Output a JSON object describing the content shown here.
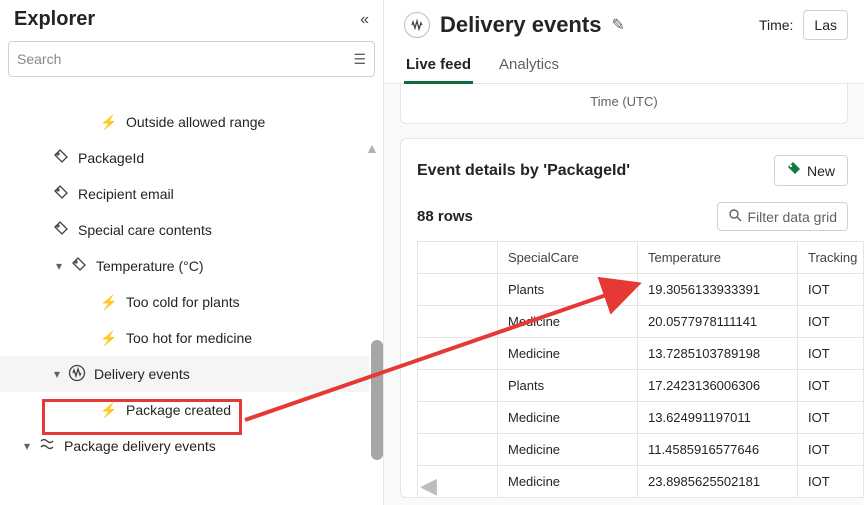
{
  "sidebar": {
    "title": "Explorer",
    "search_placeholder": "Search",
    "items": [
      {
        "label": "Outside allowed range",
        "icon": "bolt",
        "indent": 3
      },
      {
        "label": "PackageId",
        "icon": "tag",
        "indent": 1
      },
      {
        "label": "Recipient email",
        "icon": "tag",
        "indent": 1
      },
      {
        "label": "Special care contents",
        "icon": "tag",
        "indent": 1
      },
      {
        "label": "Temperature (°C)",
        "icon": "tag",
        "indent": 1,
        "expanded": true
      },
      {
        "label": "Too cold for plants",
        "icon": "bolt",
        "indent": 3
      },
      {
        "label": "Too hot for medicine",
        "icon": "bolt",
        "indent": 3
      },
      {
        "label": "Delivery events",
        "icon": "wave",
        "indent": 1,
        "expanded": true,
        "selected": true
      },
      {
        "label": "Package created",
        "icon": "bolt",
        "indent": 3
      },
      {
        "label": "Package delivery events",
        "icon": "flow",
        "indent": 0,
        "expanded": true
      }
    ]
  },
  "header": {
    "title": "Delivery events",
    "time_label": "Time:",
    "time_value": "Las"
  },
  "tabs": {
    "live": "Live feed",
    "analytics": "Analytics"
  },
  "time_col": "Time (UTC)",
  "details": {
    "title": "Event details by 'PackageId'",
    "new_button": "New",
    "rows_text": "88 rows",
    "filter_placeholder": "Filter data grid"
  },
  "table": {
    "columns": [
      "",
      "SpecialCare",
      "Temperature",
      "Tracking"
    ],
    "rows": [
      [
        "",
        "Plants",
        "19.3056133933391",
        "IOT"
      ],
      [
        "",
        "Medicine",
        "20.0577978111141",
        "IOT"
      ],
      [
        "",
        "Medicine",
        "13.7285103789198",
        "IOT"
      ],
      [
        "",
        "Plants",
        "17.2423136006306",
        "IOT"
      ],
      [
        "",
        "Medicine",
        "13.624991197011",
        "IOT"
      ],
      [
        "",
        "Medicine",
        "11.4585916577646",
        "IOT"
      ],
      [
        "",
        "Medicine",
        "23.8985625502181",
        "IOT"
      ]
    ]
  },
  "style": {
    "accent_green": "#0f6c3f",
    "highlight_red": "#e53935",
    "arrow_red": "#e53935",
    "border": "#e5e5e5",
    "text": "#242424",
    "muted": "#616161"
  }
}
